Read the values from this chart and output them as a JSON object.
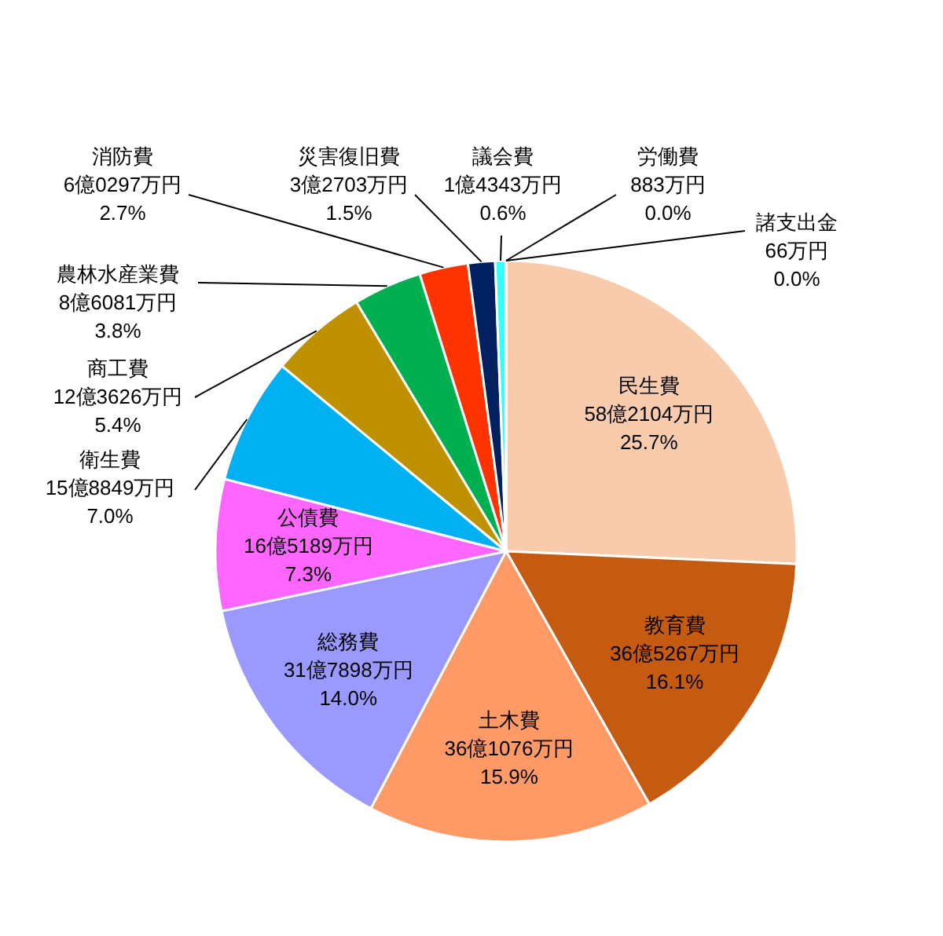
{
  "chart_data": {
    "type": "pie",
    "categories": [
      "民生費",
      "教育費",
      "土木費",
      "総務費",
      "公債費",
      "衛生費",
      "商工費",
      "農林水産業費",
      "消防費",
      "災害復旧費",
      "議会費",
      "労働費",
      "諸支出金"
    ],
    "values": [
      25.7,
      16.1,
      15.9,
      14.0,
      7.3,
      7.0,
      5.4,
      3.8,
      2.7,
      1.5,
      0.6,
      0.0,
      0.0
    ],
    "colors": [
      "#f8cbad",
      "#c55a11",
      "#ff9966",
      "#9999ff",
      "#ff66ff",
      "#00b0f0",
      "#bf9000",
      "#00b050",
      "#ff3300",
      "#002060",
      "#33ffff",
      "#99ccff",
      "#ffcc00"
    ],
    "value_labels": [
      "58億2104万円\n25.7%",
      "36億5267万円\n16.1%",
      "36億1076万円\n15.9%",
      "31億7898万円\n14.0%",
      "16億5189万円\n7.3%",
      "15億8849万円\n7.0%",
      "12億3626万円\n5.4%",
      "8億6081万円\n3.8%",
      "6億0297万円\n2.7%",
      "3億2703万円\n1.5%",
      "1億4343万円\n0.6%",
      "883万円\n0.0%",
      "66万円\n0.0%"
    ]
  }
}
